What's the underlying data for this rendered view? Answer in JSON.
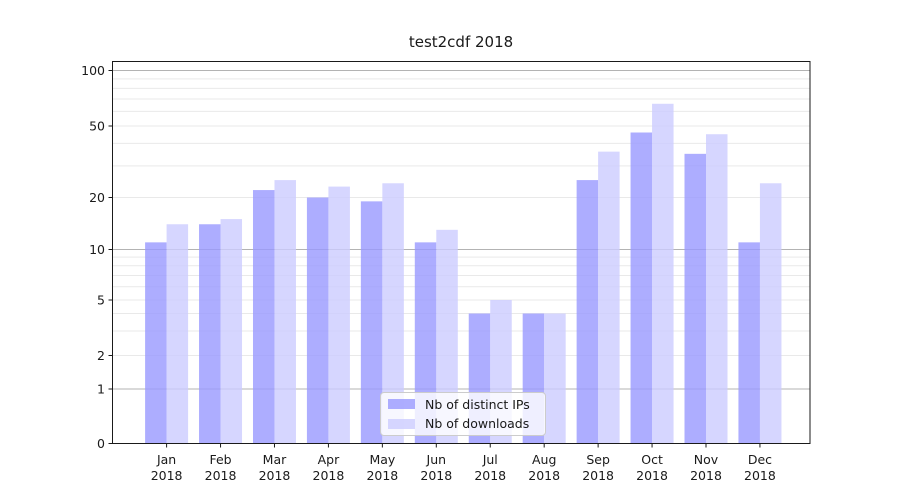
{
  "chart_data": {
    "type": "bar",
    "title": "test2cdf 2018",
    "categories": [
      {
        "month": "Jan",
        "year": "2018"
      },
      {
        "month": "Feb",
        "year": "2018"
      },
      {
        "month": "Mar",
        "year": "2018"
      },
      {
        "month": "Apr",
        "year": "2018"
      },
      {
        "month": "May",
        "year": "2018"
      },
      {
        "month": "Jun",
        "year": "2018"
      },
      {
        "month": "Jul",
        "year": "2018"
      },
      {
        "month": "Aug",
        "year": "2018"
      },
      {
        "month": "Sep",
        "year": "2018"
      },
      {
        "month": "Oct",
        "year": "2018"
      },
      {
        "month": "Nov",
        "year": "2018"
      },
      {
        "month": "Dec",
        "year": "2018"
      }
    ],
    "series": [
      {
        "name": "Nb of distinct IPs",
        "color": "#9999ff",
        "opacity": 0.8,
        "values": [
          11,
          14,
          22,
          20,
          19,
          11,
          4,
          4,
          25,
          46,
          35,
          11
        ]
      },
      {
        "name": "Nb of downloads",
        "color": "#ccccff",
        "opacity": 0.8,
        "values": [
          14,
          15,
          25,
          23,
          24,
          13,
          5,
          4,
          36,
          66,
          45,
          24
        ]
      }
    ],
    "y_axis": {
      "scale": "symlog-like",
      "tick_labels": [
        "100",
        "50",
        "20",
        "10",
        "5",
        "2",
        "1",
        "0"
      ],
      "ticks": [
        100,
        50,
        20,
        10,
        5,
        2,
        1,
        0
      ],
      "major_gridlines": [
        1,
        10,
        100
      ],
      "minor_gridlines": [
        2,
        3,
        4,
        5,
        6,
        7,
        8,
        9,
        20,
        30,
        40,
        50,
        60,
        70,
        80,
        90
      ],
      "range": [
        0,
        111
      ]
    },
    "grid": true,
    "legend": {
      "position": "lower center",
      "entries": [
        "Nb of distinct IPs",
        "Nb of downloads"
      ]
    }
  }
}
